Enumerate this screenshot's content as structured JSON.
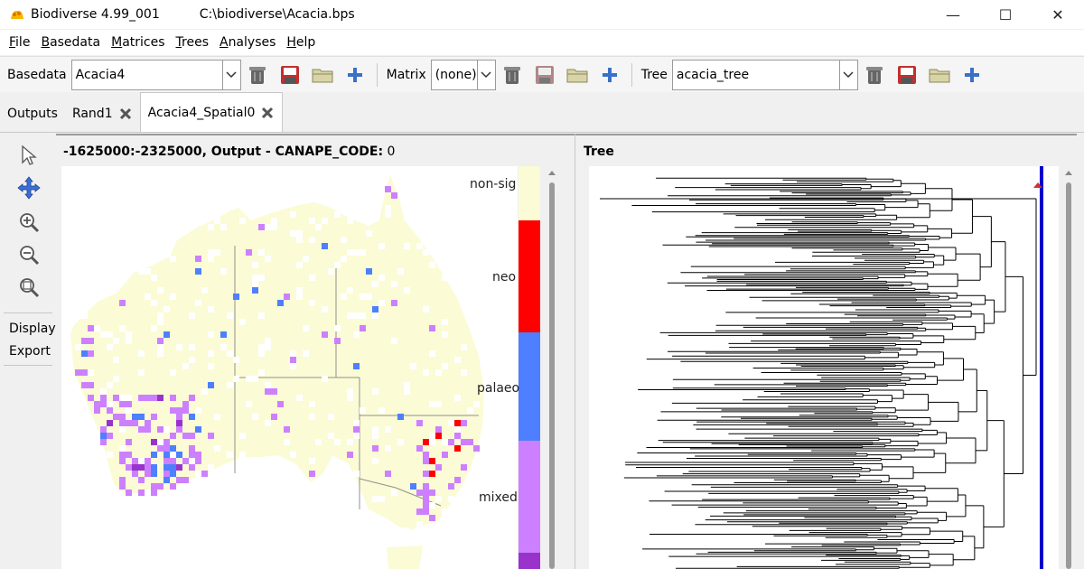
{
  "window": {
    "app_name": "Biodiverse 4.99_001",
    "file_path": "C:\\biodiverse\\Acacia.bps",
    "controls": {
      "minimize": "—",
      "maximize": "☐",
      "close": "✕"
    }
  },
  "menu": [
    {
      "label": "File",
      "u": "F",
      "rest": "ile"
    },
    {
      "label": "Basedata",
      "u": "B",
      "rest": "asedata"
    },
    {
      "label": "Matrices",
      "u": "M",
      "rest": "atrices"
    },
    {
      "label": "Trees",
      "u": "T",
      "rest": "rees"
    },
    {
      "label": "Analyses",
      "u": "A",
      "rest": "nalyses"
    },
    {
      "label": "Help",
      "u": "H",
      "rest": "elp"
    }
  ],
  "toolbar": {
    "basedata_label": "Basedata",
    "basedata_value": "Acacia4",
    "matrix_label": "Matrix",
    "matrix_value": "(none)",
    "tree_label": "Tree",
    "tree_value": "acacia_tree"
  },
  "tabs": [
    {
      "label": "Outputs",
      "closable": false
    },
    {
      "label": "Rand1",
      "closable": true
    },
    {
      "label": "Acacia4_Spatial0",
      "closable": true
    }
  ],
  "left_panel": {
    "display_label": "Display",
    "export_label": "Export"
  },
  "map": {
    "coords": "-1625000:-2325000, Output - ",
    "index_name": "CANAPE_CODE:",
    "index_value": "0"
  },
  "legend": {
    "labels": [
      "non-sig",
      "neo",
      "palaeo",
      "mixed"
    ],
    "colors": {
      "non_sig": "#fbfbd6",
      "neo": "#ff0000",
      "palaeo": "#4d7fff",
      "mixed": "#cc80ff",
      "super": "#9933cc"
    }
  },
  "tree": {
    "title": "Tree",
    "line_color": "#0000cc"
  },
  "colors": {
    "land": "#fbfbd6",
    "border": "#909090"
  }
}
